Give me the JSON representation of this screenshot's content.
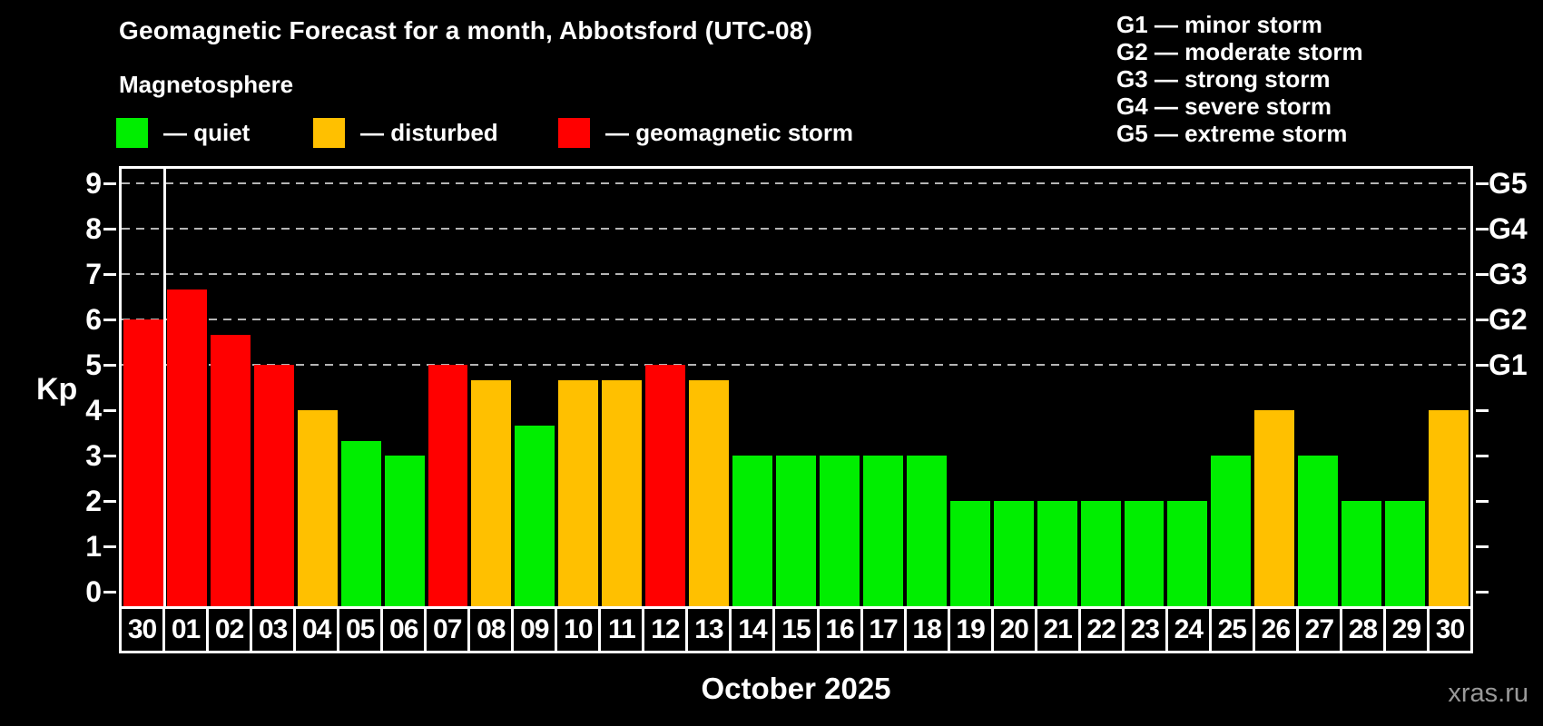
{
  "header": {
    "title": "Geomagnetic Forecast for a month, Abbotsford (UTC-08)",
    "subtitle": "Magnetosphere"
  },
  "legend": {
    "items": [
      {
        "name": "quiet",
        "label": "— quiet",
        "color": "#00ee00"
      },
      {
        "name": "disturbed",
        "label": "— disturbed",
        "color": "#ffc000"
      },
      {
        "name": "storm",
        "label": "— geomagnetic storm",
        "color": "#ff0000"
      }
    ]
  },
  "g_legend": {
    "items": [
      "G1 — minor storm",
      "G2 — moderate storm",
      "G3 — strong storm",
      "G4 — severe storm",
      "G5 — extreme storm"
    ]
  },
  "chart_data": {
    "type": "bar",
    "title": "Geomagnetic Forecast for a month, Abbotsford (UTC-08)",
    "ylabel": "Kp",
    "xlabel": "October 2025",
    "ylim": [
      0,
      9.4
    ],
    "yticks": [
      0,
      1,
      2,
      3,
      4,
      5,
      6,
      7,
      8,
      9
    ],
    "ytick_labels": [
      "0",
      "1",
      "2",
      "3",
      "4",
      "5",
      "6",
      "7",
      "8",
      "9"
    ],
    "gridlines_at": [
      5,
      6,
      7,
      8,
      9
    ],
    "grid": "dashed horizontal at G-storm levels only",
    "right_axis_labels": [
      {
        "kp": 5,
        "label": "G1"
      },
      {
        "kp": 6,
        "label": "G2"
      },
      {
        "kp": 7,
        "label": "G3"
      },
      {
        "kp": 8,
        "label": "G4"
      },
      {
        "kp": 9,
        "label": "G5"
      }
    ],
    "categories": [
      "30",
      "01",
      "02",
      "03",
      "04",
      "05",
      "06",
      "07",
      "08",
      "09",
      "10",
      "11",
      "12",
      "13",
      "14",
      "15",
      "16",
      "17",
      "18",
      "19",
      "20",
      "21",
      "22",
      "23",
      "24",
      "25",
      "26",
      "27",
      "28",
      "29",
      "30"
    ],
    "values": [
      6.0,
      6.67,
      5.67,
      5.0,
      4.0,
      3.33,
      3.0,
      5.0,
      4.67,
      3.67,
      4.67,
      4.67,
      5.0,
      4.67,
      3.0,
      3.0,
      3.0,
      3.0,
      3.0,
      2.0,
      2.0,
      2.0,
      2.0,
      2.0,
      2.0,
      3.0,
      4.0,
      3.0,
      2.0,
      2.0,
      4.0
    ],
    "statuses": [
      "storm",
      "storm",
      "storm",
      "storm",
      "disturbed",
      "quiet",
      "quiet",
      "storm",
      "disturbed",
      "quiet",
      "disturbed",
      "disturbed",
      "storm",
      "disturbed",
      "quiet",
      "quiet",
      "quiet",
      "quiet",
      "quiet",
      "quiet",
      "quiet",
      "quiet",
      "quiet",
      "quiet",
      "quiet",
      "quiet",
      "disturbed",
      "quiet",
      "quiet",
      "quiet",
      "disturbed"
    ],
    "palette": {
      "quiet": "#00ee00",
      "disturbed": "#ffc000",
      "storm": "#ff0000"
    },
    "month_separator_after_index": 0,
    "legend_position": "top-left",
    "axis_color": "#ffffff",
    "gridline_color": "#b5b5b5",
    "background": "#000000"
  },
  "footer": {
    "month_label": "October 2025",
    "watermark": "xras.ru"
  }
}
